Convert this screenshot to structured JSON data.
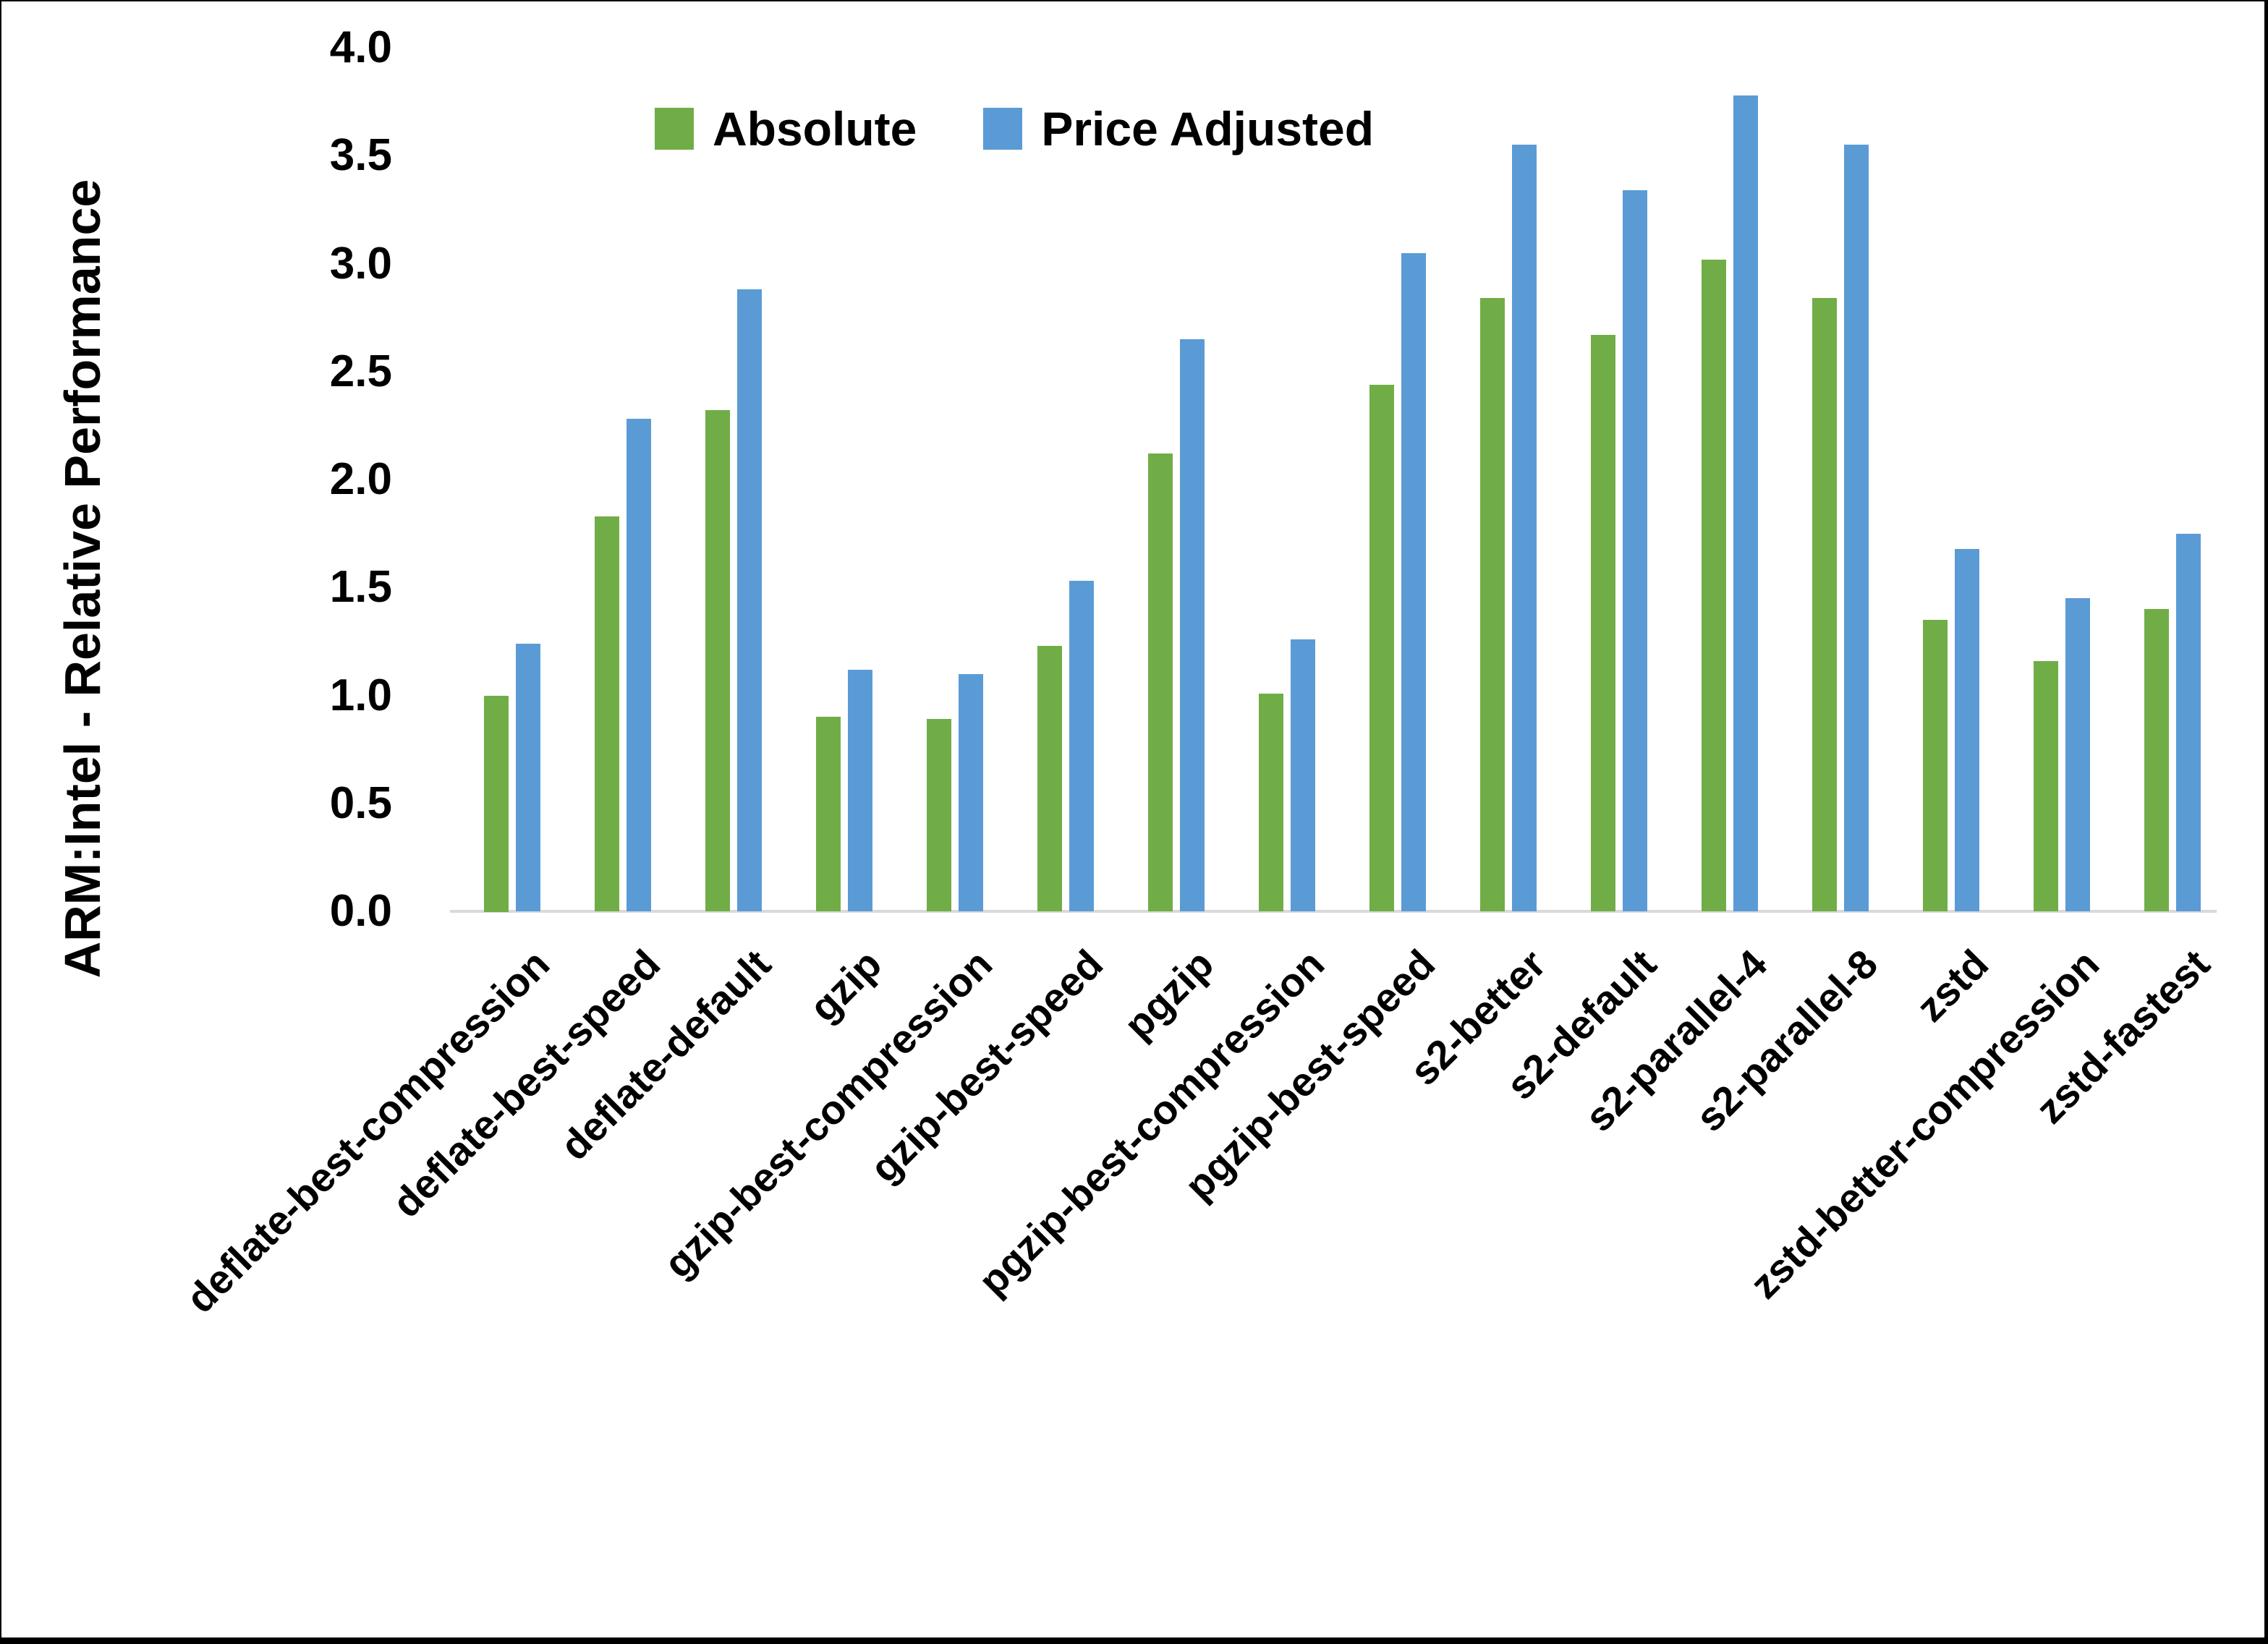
{
  "figure": {
    "y_axis_title": "ARM:Intel - Relative Performance",
    "y_ticks": [
      "0.0",
      "0.5",
      "1.0",
      "1.5",
      "2.0",
      "2.5",
      "3.0",
      "3.5",
      "4.0"
    ],
    "colors": {
      "absolute_green": "#70AD47",
      "price_adjusted_blue": "#5B9BD5",
      "axis_line_gray": "#D9D9D9",
      "text": "#000000"
    }
  },
  "chart_data": {
    "type": "bar",
    "title": "",
    "xlabel": "",
    "ylabel": "ARM:Intel - Relative Performance",
    "ylim": [
      0,
      4.0
    ],
    "ytick_step": 0.5,
    "grid": false,
    "legend_position": "top-center",
    "legend": [
      "Absolute",
      "Price Adjusted"
    ],
    "categories": [
      "deflate-best-compression",
      "deflate-best-speed",
      "deflate-default",
      "gzip",
      "gzip-best-compression",
      "gzip-best-speed",
      "pgzip",
      "pgzip-best-compression",
      "pgzip-best-speed",
      "s2-better",
      "s2-default",
      "s2-parallel-4",
      "s2-parallel-8",
      "zstd",
      "zstd-better-compression",
      "zstd-fastest"
    ],
    "series": [
      {
        "name": "Absolute",
        "color": "#70AD47",
        "values": [
          1.0,
          1.83,
          2.32,
          0.9,
          0.89,
          1.23,
          2.12,
          1.01,
          2.44,
          2.84,
          2.67,
          3.02,
          2.84,
          1.35,
          1.16,
          1.4
        ]
      },
      {
        "name": "Price Adjusted",
        "color": "#5B9BD5",
        "values": [
          1.24,
          2.28,
          2.88,
          1.12,
          1.1,
          1.53,
          2.65,
          1.26,
          3.05,
          3.55,
          3.34,
          3.78,
          3.55,
          1.68,
          1.45,
          1.75
        ]
      }
    ]
  }
}
